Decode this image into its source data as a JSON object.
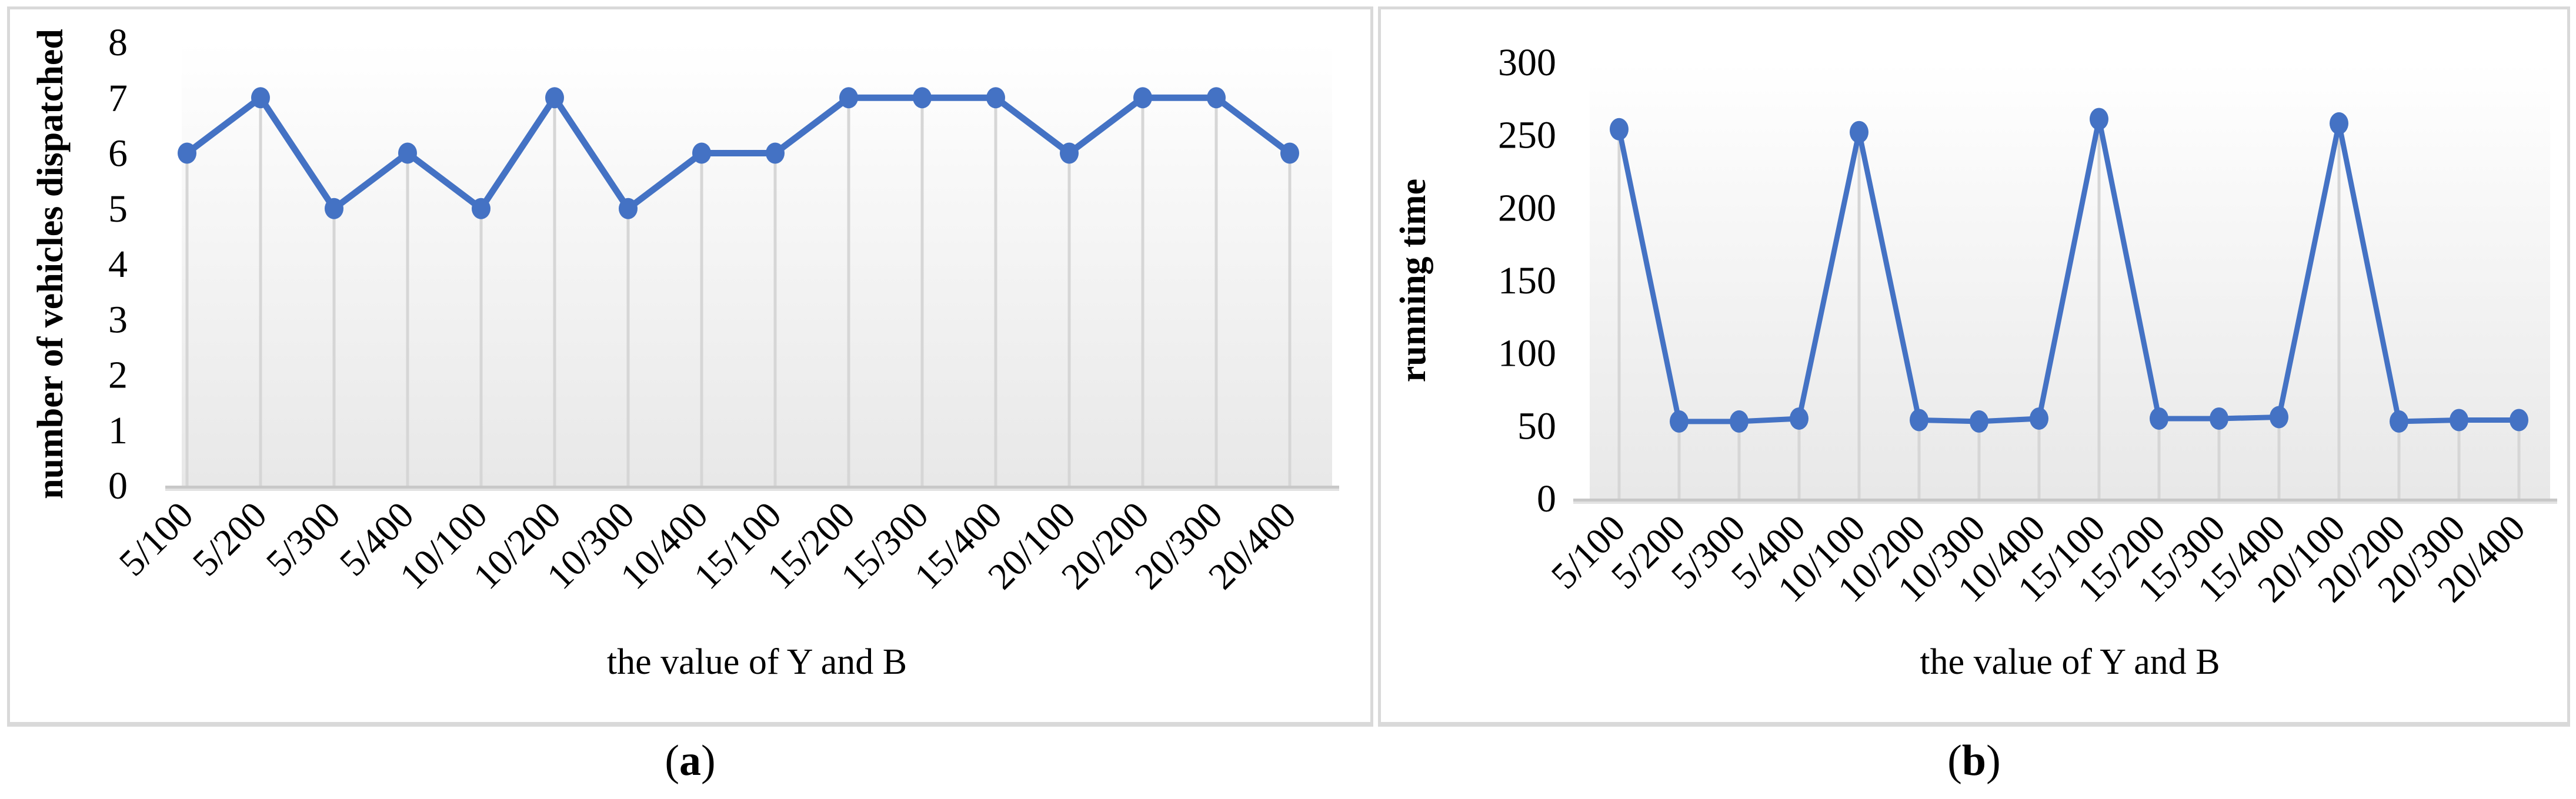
{
  "figure": {
    "panels": [
      {
        "id": "a",
        "caption_open": "(",
        "caption_letter": "a",
        "caption_close": ")"
      },
      {
        "id": "b",
        "caption_open": "(",
        "caption_letter": "b",
        "caption_close": ")"
      }
    ]
  },
  "colors": {
    "line": "#4472c4",
    "grid": "#d6d6d6",
    "axis_line": "#c8c8c8",
    "axis_shadow": "#e2e2e2",
    "plot_bg_top": "#ffffff",
    "plot_bg_bottom": "#e8e8e8",
    "panel_border": "#d9d9d9",
    "text": "#000000"
  },
  "chart_data": [
    {
      "id": "a",
      "type": "line",
      "title": "",
      "xlabel": "the value of Y and B",
      "ylabel": "number of vehicles dispatched",
      "categories": [
        "5/100",
        "5/200",
        "5/300",
        "5/400",
        "10/100",
        "10/200",
        "10/300",
        "10/400",
        "15/100",
        "15/200",
        "15/300",
        "15/400",
        "20/100",
        "20/200",
        "20/300",
        "20/400"
      ],
      "values": [
        6,
        7,
        5,
        6,
        5,
        7,
        5,
        6,
        6,
        7,
        7,
        7,
        6,
        7,
        7,
        6
      ],
      "ylim": [
        0,
        8
      ],
      "ytick_step": 1,
      "grid": "vertical-drop-lines",
      "legend": "none",
      "line_color": "#4472c4",
      "marker": "filled-circle"
    },
    {
      "id": "b",
      "type": "line",
      "title": "",
      "xlabel": "the value of Y and B",
      "ylabel": "running time",
      "categories": [
        "5/100",
        "5/200",
        "5/300",
        "5/400",
        "10/100",
        "10/200",
        "10/300",
        "10/400",
        "15/100",
        "15/200",
        "15/300",
        "15/400",
        "20/100",
        "20/200",
        "20/300",
        "20/400"
      ],
      "values": [
        254,
        53,
        53,
        55,
        252,
        54,
        53,
        55,
        261,
        55,
        55,
        56,
        258,
        53,
        54,
        54
      ],
      "ylim": [
        0,
        300
      ],
      "ytick_step": 50,
      "grid": "vertical-drop-lines",
      "legend": "none",
      "line_color": "#4472c4",
      "marker": "filled-circle"
    }
  ]
}
